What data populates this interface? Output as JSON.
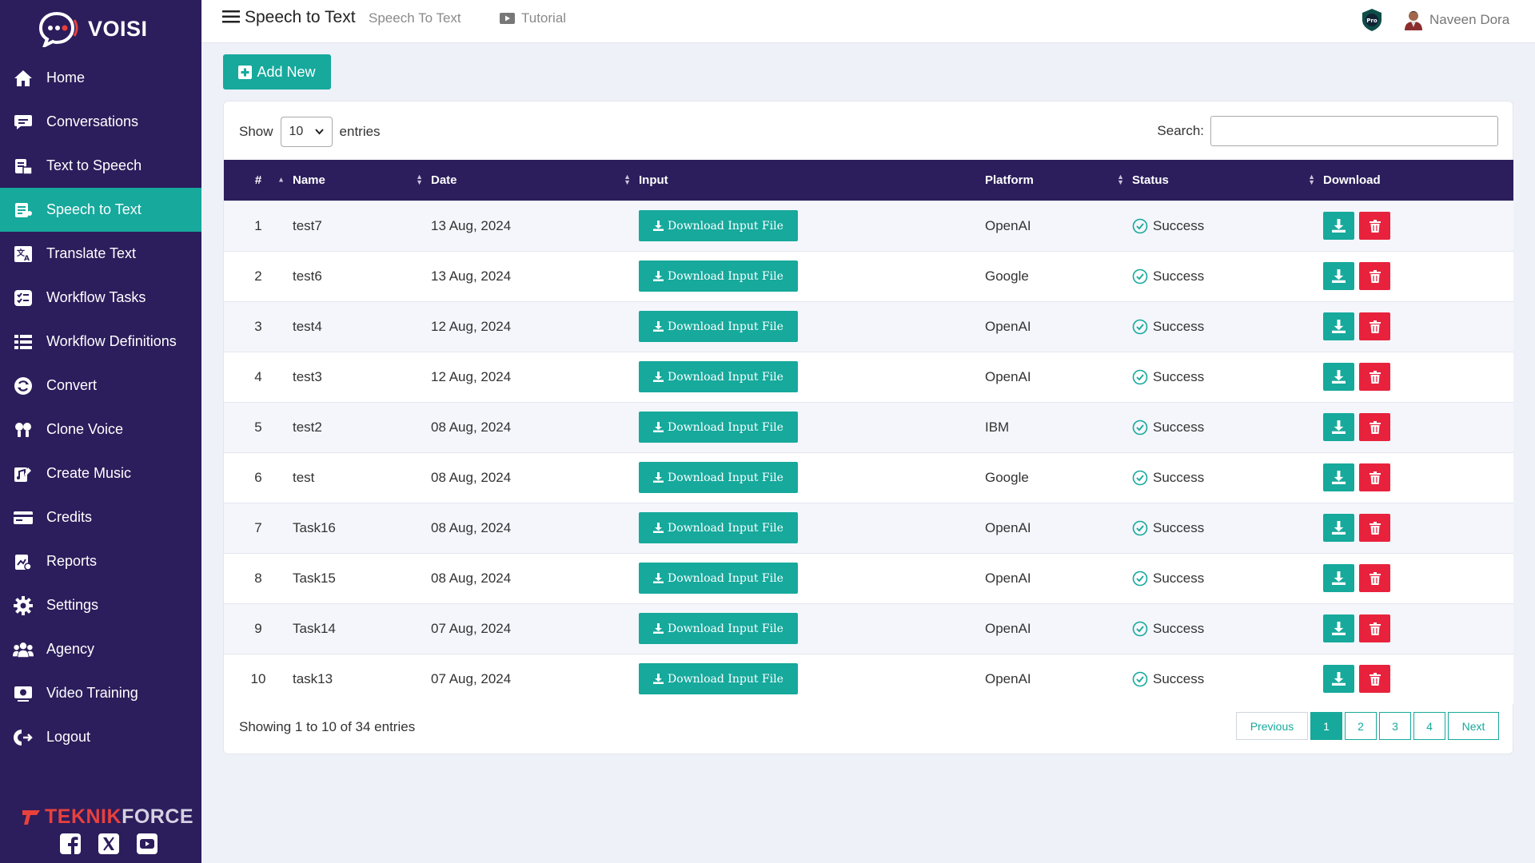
{
  "app": {
    "logo_text": "VOISI",
    "brand_teknik": "TEKNIK",
    "brand_force": "FORCE"
  },
  "sidebar": {
    "items": [
      {
        "label": "Home",
        "icon": "home-icon"
      },
      {
        "label": "Conversations",
        "icon": "chat-icon"
      },
      {
        "label": "Text to Speech",
        "icon": "text-to-speech-icon"
      },
      {
        "label": "Speech to Text",
        "icon": "speech-to-text-icon",
        "active": true
      },
      {
        "label": "Translate Text",
        "icon": "translate-icon"
      },
      {
        "label": "Workflow Tasks",
        "icon": "tasks-icon"
      },
      {
        "label": "Workflow Definitions",
        "icon": "definitions-icon"
      },
      {
        "label": "Convert",
        "icon": "convert-icon"
      },
      {
        "label": "Clone Voice",
        "icon": "clone-voice-icon"
      },
      {
        "label": "Create Music",
        "icon": "music-icon"
      },
      {
        "label": "Credits",
        "icon": "credits-icon"
      },
      {
        "label": "Reports",
        "icon": "reports-icon"
      },
      {
        "label": "Settings",
        "icon": "gear-icon"
      },
      {
        "label": "Agency",
        "icon": "agency-icon"
      },
      {
        "label": "Video Training",
        "icon": "video-training-icon"
      },
      {
        "label": "Logout",
        "icon": "logout-icon"
      }
    ]
  },
  "header": {
    "title": "Speech to Text",
    "breadcrumb": "Speech To Text",
    "tutorial": "Tutorial",
    "user_name": "Naveen Dora"
  },
  "toolbar": {
    "add_new": "Add New"
  },
  "table_controls": {
    "show": "Show",
    "entries_value": "10",
    "entries": "entries",
    "search": "Search:"
  },
  "table": {
    "headers": {
      "num": "#",
      "name": "Name",
      "date": "Date",
      "input": "Input",
      "platform": "Platform",
      "status": "Status",
      "download": "Download"
    },
    "download_input_label": "Download Input File",
    "rows": [
      {
        "num": "1",
        "name": "test7",
        "date": "13 Aug, 2024",
        "platform": "OpenAI",
        "status": "Success"
      },
      {
        "num": "2",
        "name": "test6",
        "date": "13 Aug, 2024",
        "platform": "Google",
        "status": "Success"
      },
      {
        "num": "3",
        "name": "test4",
        "date": "12 Aug, 2024",
        "platform": "OpenAI",
        "status": "Success"
      },
      {
        "num": "4",
        "name": "test3",
        "date": "12 Aug, 2024",
        "platform": "OpenAI",
        "status": "Success"
      },
      {
        "num": "5",
        "name": "test2",
        "date": "08 Aug, 2024",
        "platform": "IBM",
        "status": "Success"
      },
      {
        "num": "6",
        "name": "test",
        "date": "08 Aug, 2024",
        "platform": "Google",
        "status": "Success"
      },
      {
        "num": "7",
        "name": "Task16",
        "date": "08 Aug, 2024",
        "platform": "OpenAI",
        "status": "Success"
      },
      {
        "num": "8",
        "name": "Task15",
        "date": "08 Aug, 2024",
        "platform": "OpenAI",
        "status": "Success"
      },
      {
        "num": "9",
        "name": "Task14",
        "date": "07 Aug, 2024",
        "platform": "OpenAI",
        "status": "Success"
      },
      {
        "num": "10",
        "name": "task13",
        "date": "07 Aug, 2024",
        "platform": "OpenAI",
        "status": "Success"
      }
    ]
  },
  "footer": {
    "info": "Showing 1 to 10 of 34 entries"
  },
  "pagination": {
    "previous": "Previous",
    "pages": [
      "1",
      "2",
      "3",
      "4"
    ],
    "current": "1",
    "next": "Next"
  },
  "colors": {
    "sidebar": "#2c1d5c",
    "accent": "#16a99c",
    "danger": "#e8223c",
    "brand_red": "#e8413c"
  }
}
